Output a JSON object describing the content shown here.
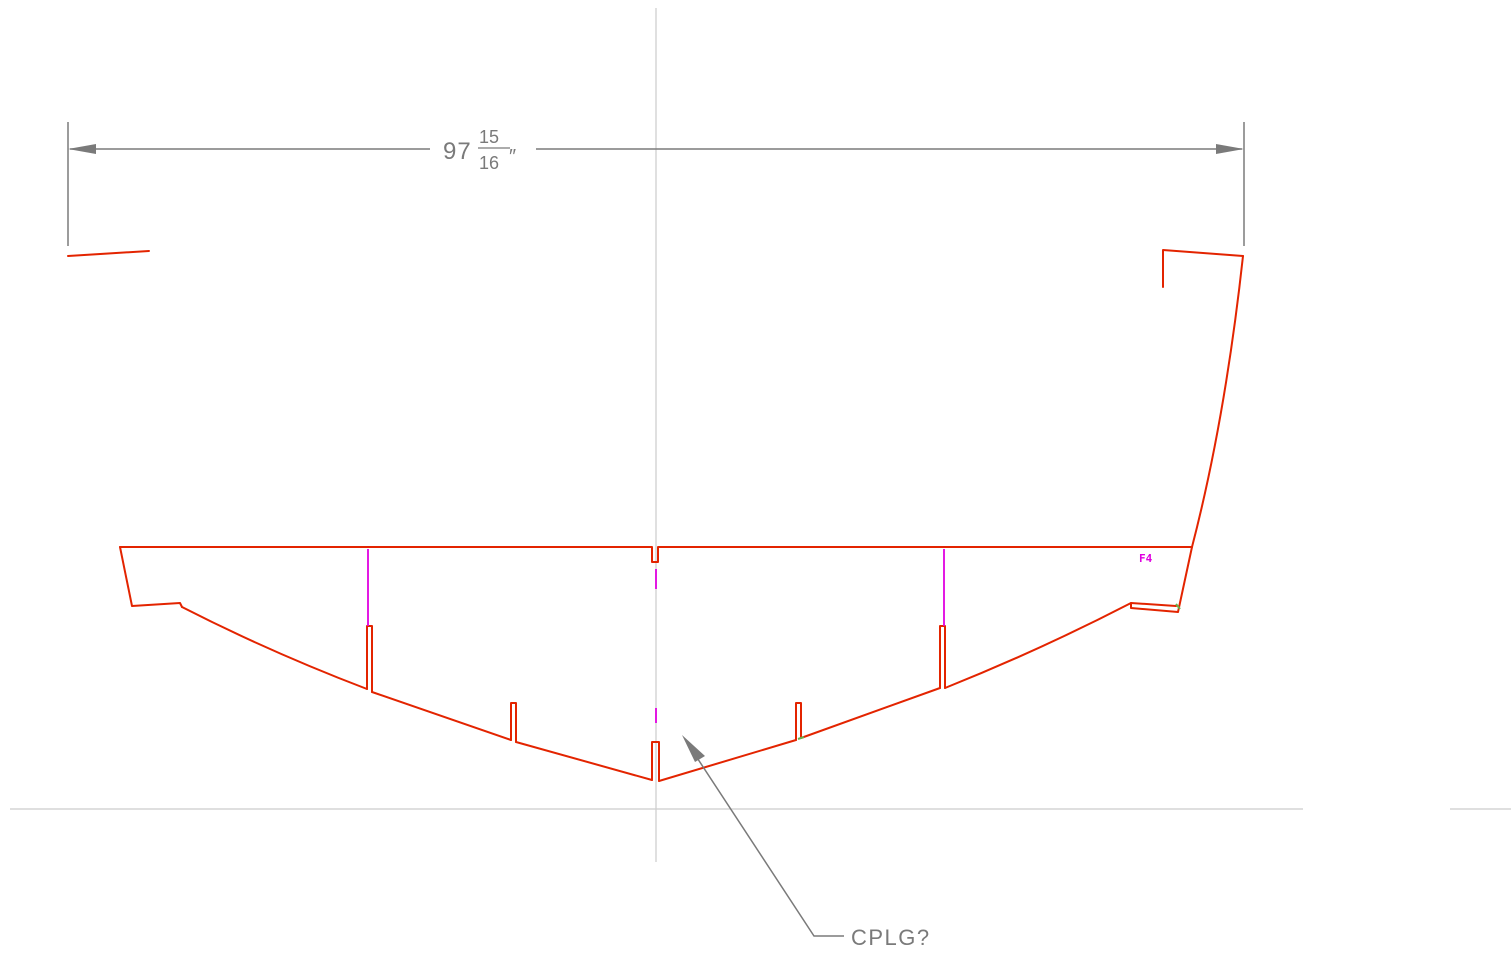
{
  "drawing": {
    "dimension": {
      "whole": "97",
      "numerator": "15",
      "denominator": "16",
      "unit": "″"
    },
    "frame_tag": "F4",
    "leader_note": "CPLG?",
    "colors": {
      "hull": "#e32400",
      "frame_lines": "#e000e0",
      "dimension": "#7a7a7a",
      "centerline": "#cccccc",
      "accent": "#6ab04c"
    }
  }
}
